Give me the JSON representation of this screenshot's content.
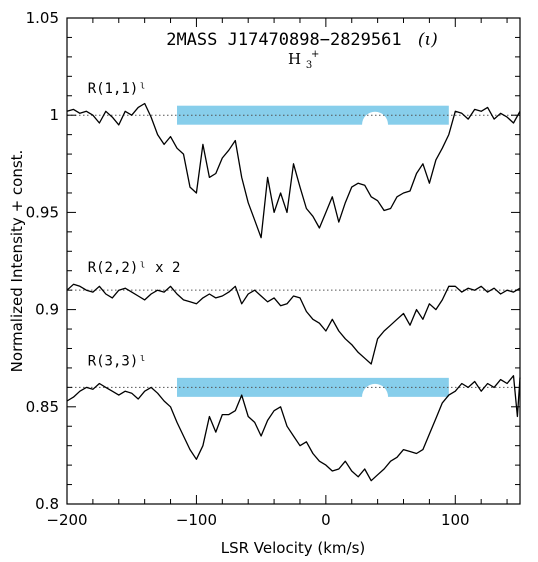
{
  "chart_data": {
    "type": "line",
    "title": "2MASS J17470898−2829561",
    "title_tag": "(ι)",
    "species": {
      "base": "H",
      "sub": "3",
      "sup": "+"
    },
    "xlabel": "LSR Velocity (km/s)",
    "ylabel": "Normalized Intensity + const.",
    "xlim": [
      -200,
      150
    ],
    "ylim": [
      0.8,
      1.05
    ],
    "xticks": [
      -200,
      -100,
      0,
      100
    ],
    "xtick_labels": [
      "−200",
      "−100",
      "0",
      "100"
    ],
    "yticks": [
      0.8,
      0.85,
      0.9,
      0.95,
      1.0,
      1.05
    ],
    "ytick_labels": [
      "0.8",
      "0.85",
      "0.9",
      "0.95",
      "1",
      "1.05"
    ],
    "accent_color": "#87ceeb",
    "series": [
      {
        "name": "R(1,1)ˡ",
        "baseline": 1.0,
        "x": [
          -200,
          -195,
          -190,
          -185,
          -180,
          -175,
          -170,
          -165,
          -160,
          -155,
          -150,
          -145,
          -140,
          -135,
          -130,
          -125,
          -120,
          -115,
          -110,
          -105,
          -100,
          -95,
          -90,
          -85,
          -80,
          -75,
          -70,
          -65,
          -60,
          -55,
          -50,
          -45,
          -40,
          -35,
          -30,
          -25,
          -20,
          -15,
          -10,
          -5,
          0,
          5,
          10,
          15,
          20,
          25,
          30,
          35,
          40,
          45,
          50,
          55,
          60,
          65,
          70,
          75,
          80,
          85,
          90,
          95,
          100,
          105,
          110,
          115,
          120,
          125,
          130,
          135,
          140,
          145,
          150
        ],
        "y": [
          1.002,
          1.003,
          1.001,
          1.002,
          1.0,
          0.996,
          1.002,
          0.999,
          0.995,
          1.002,
          1.0,
          1.004,
          1.006,
          0.999,
          0.99,
          0.985,
          0.989,
          0.983,
          0.98,
          0.963,
          0.96,
          0.985,
          0.968,
          0.97,
          0.978,
          0.982,
          0.987,
          0.968,
          0.955,
          0.946,
          0.937,
          0.968,
          0.95,
          0.96,
          0.95,
          0.975,
          0.963,
          0.952,
          0.948,
          0.942,
          0.95,
          0.958,
          0.945,
          0.955,
          0.963,
          0.965,
          0.964,
          0.958,
          0.956,
          0.951,
          0.952,
          0.958,
          0.96,
          0.961,
          0.97,
          0.975,
          0.965,
          0.977,
          0.983,
          0.99,
          1.002,
          1.001,
          0.998,
          1.003,
          1.002,
          1.004,
          0.998,
          1.001,
          0.999,
          0.996,
          1.002
        ]
      },
      {
        "name": "R(2,2)ˡ x 2",
        "baseline": 0.91,
        "x": [
          -200,
          -195,
          -190,
          -185,
          -180,
          -175,
          -170,
          -165,
          -160,
          -155,
          -150,
          -145,
          -140,
          -135,
          -130,
          -125,
          -120,
          -115,
          -110,
          -105,
          -100,
          -95,
          -90,
          -85,
          -80,
          -75,
          -70,
          -65,
          -60,
          -55,
          -50,
          -45,
          -40,
          -35,
          -30,
          -25,
          -20,
          -15,
          -10,
          -5,
          0,
          5,
          10,
          15,
          20,
          25,
          30,
          35,
          40,
          45,
          50,
          55,
          60,
          65,
          70,
          75,
          80,
          85,
          90,
          95,
          100,
          105,
          110,
          115,
          120,
          125,
          130,
          135,
          140,
          145,
          150
        ],
        "y": [
          0.91,
          0.913,
          0.912,
          0.91,
          0.909,
          0.912,
          0.908,
          0.906,
          0.91,
          0.911,
          0.909,
          0.907,
          0.905,
          0.908,
          0.91,
          0.909,
          0.912,
          0.908,
          0.905,
          0.904,
          0.903,
          0.906,
          0.908,
          0.906,
          0.907,
          0.909,
          0.912,
          0.903,
          0.908,
          0.91,
          0.907,
          0.904,
          0.906,
          0.902,
          0.903,
          0.907,
          0.906,
          0.899,
          0.895,
          0.893,
          0.889,
          0.895,
          0.889,
          0.885,
          0.882,
          0.878,
          0.875,
          0.872,
          0.885,
          0.889,
          0.892,
          0.895,
          0.898,
          0.892,
          0.9,
          0.895,
          0.903,
          0.9,
          0.905,
          0.912,
          0.912,
          0.909,
          0.911,
          0.91,
          0.912,
          0.909,
          0.911,
          0.908,
          0.91,
          0.909,
          0.911
        ]
      },
      {
        "name": "R(3,3)ˡ",
        "baseline": 0.86,
        "x": [
          -200,
          -195,
          -190,
          -185,
          -180,
          -175,
          -170,
          -165,
          -160,
          -155,
          -150,
          -145,
          -140,
          -135,
          -130,
          -125,
          -120,
          -115,
          -110,
          -105,
          -100,
          -95,
          -90,
          -85,
          -80,
          -75,
          -70,
          -65,
          -60,
          -55,
          -50,
          -45,
          -40,
          -35,
          -30,
          -25,
          -20,
          -15,
          -10,
          -5,
          0,
          5,
          10,
          15,
          20,
          25,
          30,
          35,
          40,
          45,
          50,
          55,
          60,
          65,
          70,
          75,
          80,
          85,
          90,
          95,
          100,
          105,
          110,
          115,
          120,
          125,
          130,
          135,
          140,
          145,
          148,
          150
        ],
        "y": [
          0.853,
          0.855,
          0.858,
          0.86,
          0.859,
          0.862,
          0.86,
          0.858,
          0.856,
          0.858,
          0.857,
          0.854,
          0.858,
          0.86,
          0.857,
          0.853,
          0.85,
          0.842,
          0.835,
          0.828,
          0.823,
          0.83,
          0.845,
          0.837,
          0.846,
          0.846,
          0.848,
          0.856,
          0.845,
          0.842,
          0.835,
          0.843,
          0.848,
          0.85,
          0.84,
          0.835,
          0.83,
          0.832,
          0.826,
          0.822,
          0.82,
          0.817,
          0.818,
          0.822,
          0.817,
          0.814,
          0.818,
          0.812,
          0.815,
          0.818,
          0.822,
          0.824,
          0.828,
          0.827,
          0.826,
          0.828,
          0.836,
          0.844,
          0.852,
          0.856,
          0.858,
          0.862,
          0.86,
          0.863,
          0.858,
          0.862,
          0.86,
          0.864,
          0.862,
          0.866,
          0.845,
          0.865
        ]
      }
    ],
    "shaded_bands": [
      {
        "xmin": -115,
        "xmax": 95,
        "ycenter": 1.0,
        "notch_x": 38
      },
      {
        "xmin": -115,
        "xmax": 95,
        "ycenter": 0.86,
        "notch_x": 38
      }
    ],
    "grid": false,
    "legend": "none"
  }
}
